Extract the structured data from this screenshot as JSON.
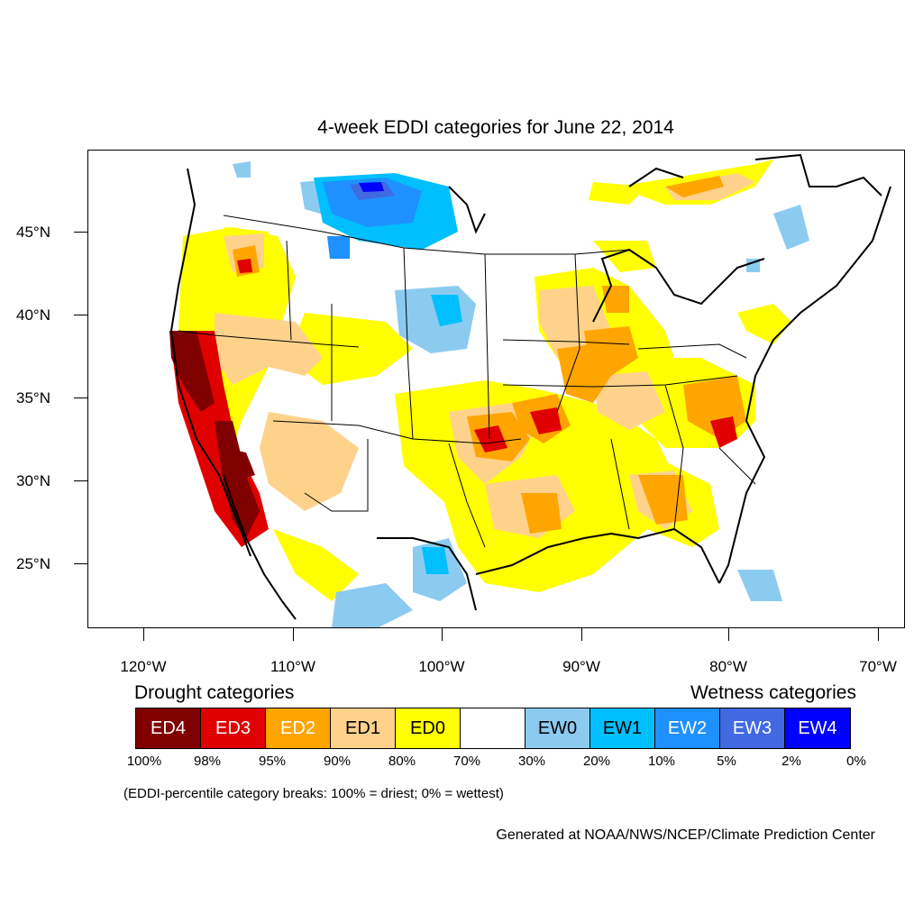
{
  "title": "4-week EDDI categories for June 22, 2014",
  "lat_labels": [
    "45°N",
    "40°N",
    "35°N",
    "30°N",
    "25°N"
  ],
  "lon_labels": [
    "120°W",
    "110°W",
    "100°W",
    "90°W",
    "80°W",
    "70°W"
  ],
  "legend": {
    "drought_heading": "Drought categories",
    "wetness_heading": "Wetness categories",
    "categories": [
      {
        "label": "ED4",
        "color": "#800000",
        "text_color": "#ffffff"
      },
      {
        "label": "ED3",
        "color": "#e00000",
        "text_color": "#ffffff"
      },
      {
        "label": "ED2",
        "color": "#ffa500",
        "text_color": "#ffffff"
      },
      {
        "label": "ED1",
        "color": "#ffd28c",
        "text_color": "#000000"
      },
      {
        "label": "ED0",
        "color": "#ffff00",
        "text_color": "#000000"
      },
      {
        "label": "",
        "color": "#ffffff",
        "text_color": "#000000"
      },
      {
        "label": "EW0",
        "color": "#8ccbf0",
        "text_color": "#000000"
      },
      {
        "label": "EW1",
        "color": "#00bfff",
        "text_color": "#000000"
      },
      {
        "label": "EW2",
        "color": "#1e90ff",
        "text_color": "#ffffff"
      },
      {
        "label": "EW3",
        "color": "#4169e1",
        "text_color": "#ffffff"
      },
      {
        "label": "EW4",
        "color": "#0000ff",
        "text_color": "#ffffff"
      }
    ],
    "percentile_breaks": [
      "100%",
      "98%",
      "95%",
      "90%",
      "80%",
      "70%",
      "30%",
      "20%",
      "10%",
      "5%",
      "2%",
      "0%"
    ]
  },
  "footnote": "(EDDI-percentile category breaks: 100% = driest; 0% = wettest)",
  "credit": "Generated at NOAA/NWS/NCEP/Climate Prediction Center"
}
